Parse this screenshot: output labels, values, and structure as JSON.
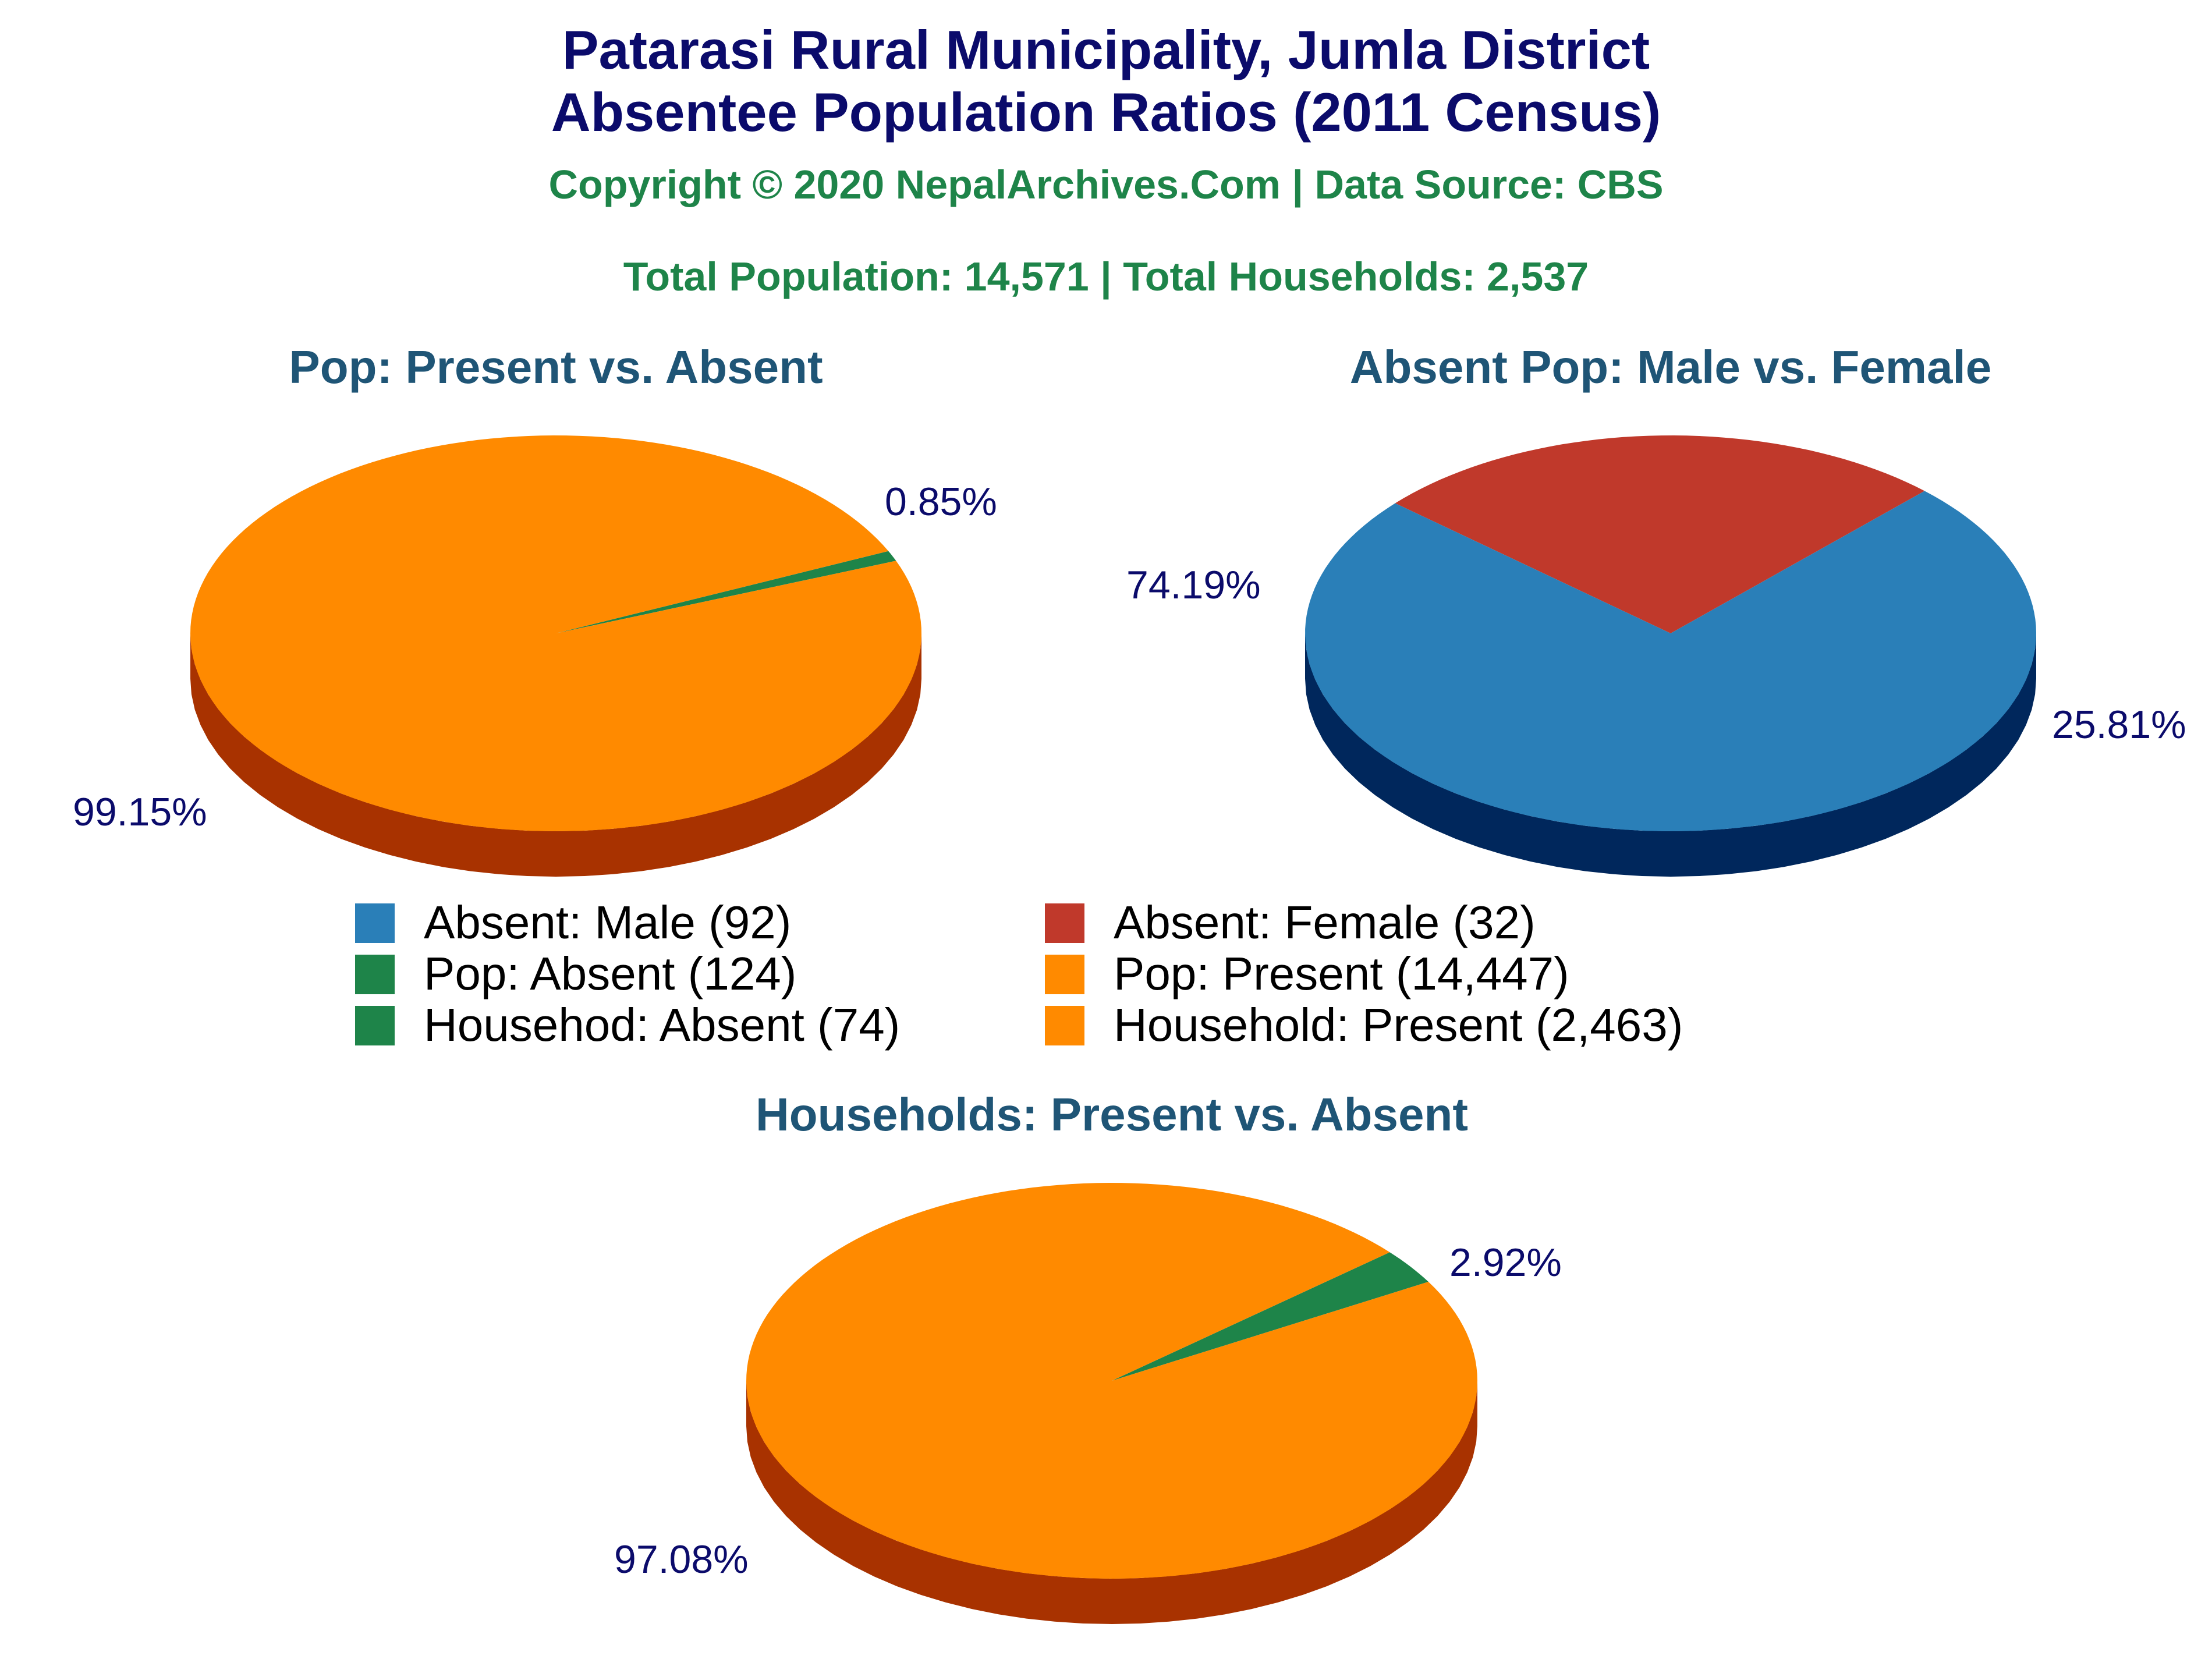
{
  "header": {
    "title_line1": "Patarasi Rural Municipality, Jumla District",
    "title_line2": "Absentee Population Ratios (2011 Census)",
    "copyright": "Copyright © 2020 NepalArchives.Com | Data Source: CBS",
    "totals": "Total Population: 14,571 | Total Households: 2,537"
  },
  "colors": {
    "title": "#0b0b6b",
    "subtitle": "#1e8449",
    "chart_title": "#1f5576",
    "pct_label": "#0b0b6b",
    "orange": "#ff8a00",
    "orange_side": "#a83200",
    "green": "#1e8449",
    "green_side": "#0e4a28",
    "blue": "#2a7fb8",
    "blue_side": "#00275c",
    "red": "#c0392b",
    "red_side": "#6a0000"
  },
  "legend": [
    {
      "label": "Absent: Male (92)",
      "color": "#2a7fb8"
    },
    {
      "label": "Absent: Female (32)",
      "color": "#c0392b"
    },
    {
      "label": "Pop: Absent (124)",
      "color": "#1e8449"
    },
    {
      "label": "Pop: Present (14,447)",
      "color": "#ff8a00"
    },
    {
      "label": "Househod: Absent (74)",
      "color": "#1e8449"
    },
    {
      "label": "Household: Present (2,463)",
      "color": "#ff8a00"
    }
  ],
  "chart_data": [
    {
      "type": "pie",
      "title": "Pop: Present vs. Absent",
      "slices": [
        {
          "label": "Pop: Absent",
          "value": 124,
          "percent": "0.85%",
          "color": "#1e8449",
          "side": "#0e4a28"
        },
        {
          "label": "Pop: Present",
          "value": 14447,
          "percent": "99.15%",
          "color": "#ff8a00",
          "side": "#a83200"
        }
      ]
    },
    {
      "type": "pie",
      "title": "Absent Pop: Male vs. Female",
      "slices": [
        {
          "label": "Absent: Female",
          "value": 32,
          "percent": "25.81%",
          "color": "#c0392b",
          "side": "#6a0000"
        },
        {
          "label": "Absent: Male",
          "value": 92,
          "percent": "74.19%",
          "color": "#2a7fb8",
          "side": "#00275c"
        }
      ]
    },
    {
      "type": "pie",
      "title": "Households: Present vs. Absent",
      "slices": [
        {
          "label": "Househod: Absent",
          "value": 74,
          "percent": "2.92%",
          "color": "#1e8449",
          "side": "#0e4a28"
        },
        {
          "label": "Household: Present",
          "value": 2463,
          "percent": "97.08%",
          "color": "#ff8a00",
          "side": "#a83200"
        }
      ]
    }
  ]
}
